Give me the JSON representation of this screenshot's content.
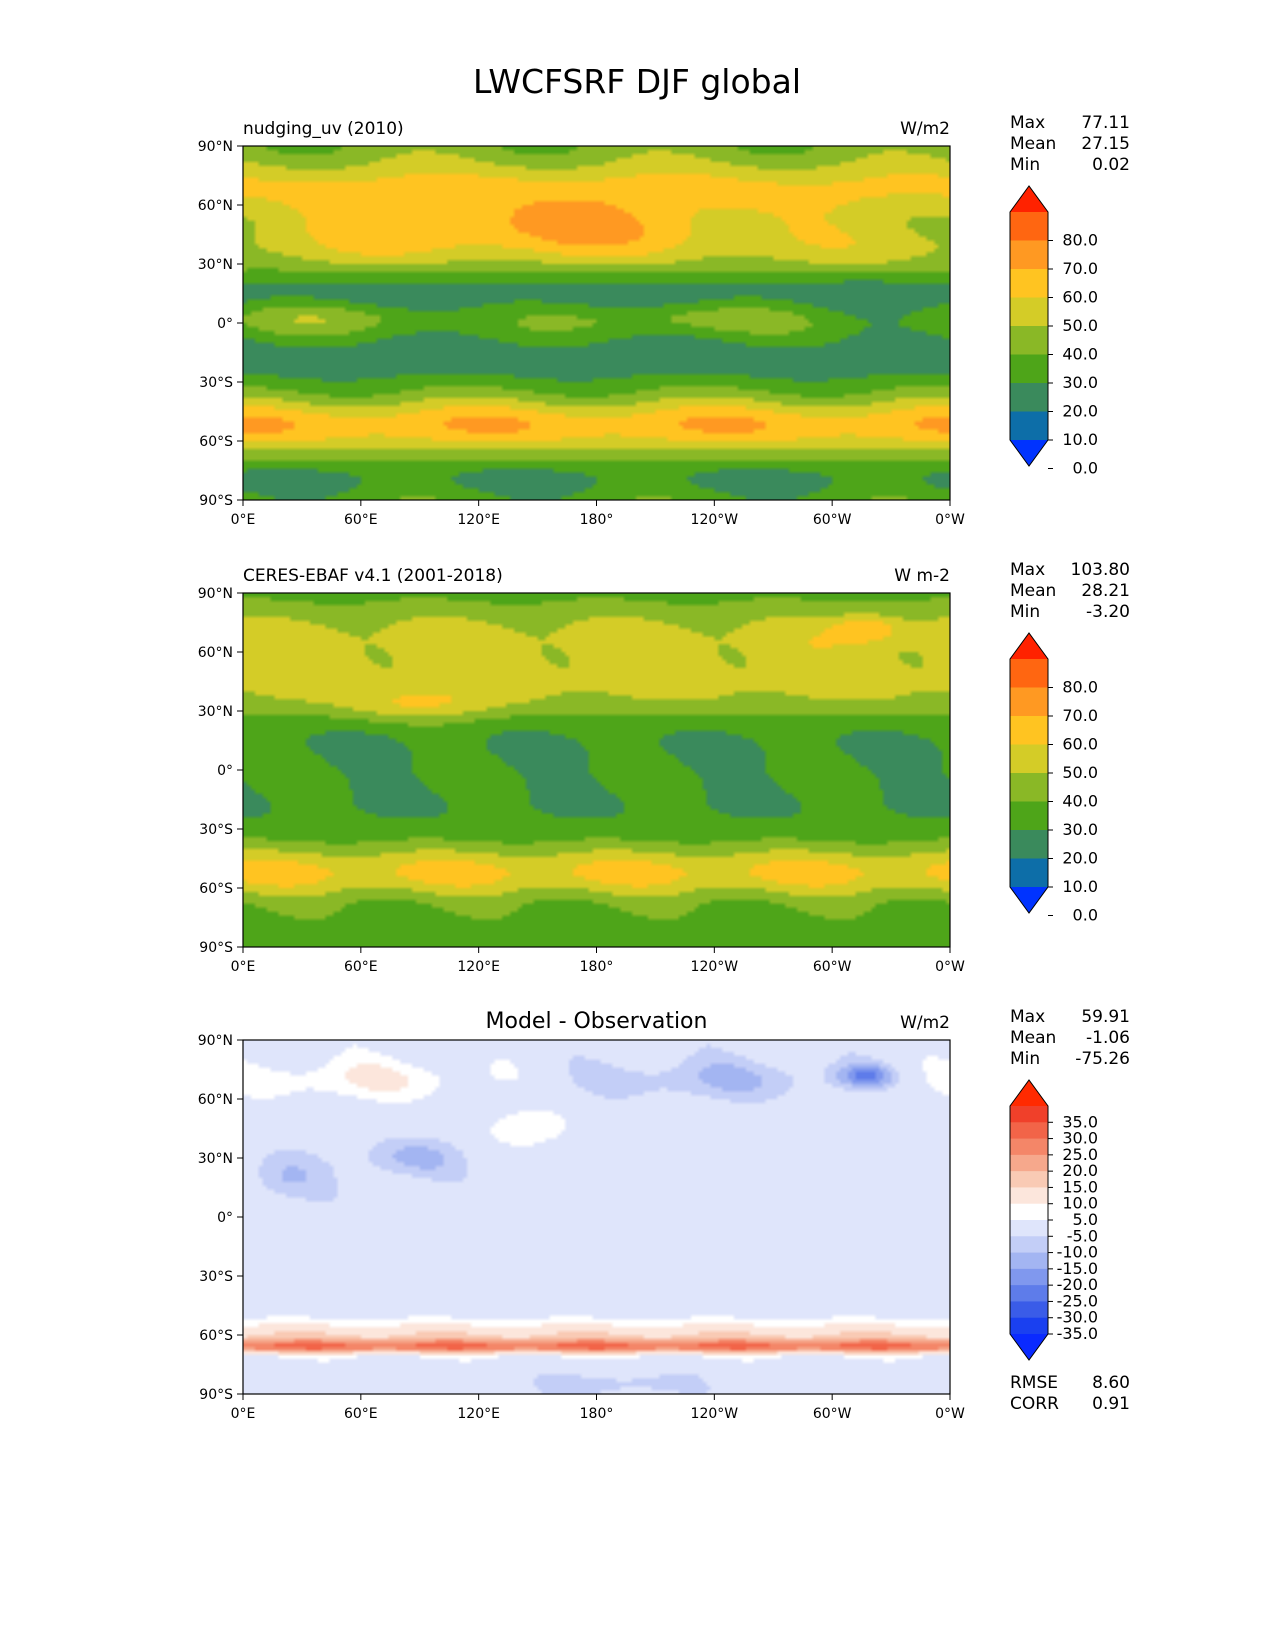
{
  "title": "LWCFSRF DJF global",
  "axes": {
    "lat_ticks": [
      "90°N",
      "60°N",
      "30°N",
      "0°",
      "30°S",
      "60°S",
      "90°S"
    ],
    "lon_ticks": [
      "0°E",
      "60°E",
      "120°E",
      "180°",
      "120°W",
      "60°W",
      "0°W"
    ]
  },
  "chart_data": [
    {
      "type": "heatmap",
      "panel_title_left": "nudging_uv (2010)",
      "panel_title_center": "",
      "units": "W/m2",
      "stats": [
        {
          "label": "Max",
          "value": "77.11"
        },
        {
          "label": "Mean",
          "value": "27.15"
        },
        {
          "label": "Min",
          "value": "0.02"
        }
      ],
      "extra_stats": [],
      "colorbar": {
        "labels": [
          "80.0",
          "70.0",
          "60.0",
          "50.0",
          "40.0",
          "30.0",
          "20.0",
          "10.0",
          "0.0"
        ],
        "colors": [
          "#ff2200",
          "#ff6611",
          "#ff9922",
          "#ffc421",
          "#d4cc27",
          "#8ab826",
          "#4ea519",
          "#3a8a5c",
          "#0d6ea8",
          "#0033ff"
        ],
        "extend": "both"
      },
      "x_range": [
        0,
        360
      ],
      "y_range": [
        -90,
        90
      ]
    },
    {
      "type": "heatmap",
      "panel_title_left": "CERES-EBAF v4.1 (2001-2018)",
      "panel_title_center": "",
      "units": "W m-2",
      "stats": [
        {
          "label": "Max",
          "value": "103.80"
        },
        {
          "label": "Mean",
          "value": "28.21"
        },
        {
          "label": "Min",
          "value": "-3.20"
        }
      ],
      "extra_stats": [],
      "colorbar": {
        "labels": [
          "80.0",
          "70.0",
          "60.0",
          "50.0",
          "40.0",
          "30.0",
          "20.0",
          "10.0",
          "0.0"
        ],
        "colors": [
          "#ff2200",
          "#ff6611",
          "#ff9922",
          "#ffc421",
          "#d4cc27",
          "#8ab826",
          "#4ea519",
          "#3a8a5c",
          "#0d6ea8",
          "#0033ff"
        ],
        "extend": "both"
      },
      "x_range": [
        0,
        360
      ],
      "y_range": [
        -90,
        90
      ]
    },
    {
      "type": "heatmap",
      "panel_title_left": "",
      "panel_title_center": "Model - Observation",
      "units": "W/m2",
      "stats": [
        {
          "label": "Max",
          "value": "59.91"
        },
        {
          "label": "Mean",
          "value": "-1.06"
        },
        {
          "label": "Min",
          "value": "-75.26"
        }
      ],
      "extra_stats": [
        {
          "label": "RMSE",
          "value": "8.60"
        },
        {
          "label": "CORR",
          "value": "0.91"
        }
      ],
      "colorbar": {
        "labels": [
          "35.0",
          "30.0",
          "25.0",
          "20.0",
          "15.0",
          "10.0",
          "5.0",
          "-5.0",
          "-10.0",
          "-15.0",
          "-20.0",
          "-25.0",
          "-30.0",
          "-35.0"
        ],
        "colors": [
          "#ff2a00",
          "#f0402a",
          "#f26448",
          "#f48668",
          "#f6a88c",
          "#f9cab4",
          "#fce6dc",
          "#ffffff",
          "#dfe5fb",
          "#c3cef7",
          "#a3b5f2",
          "#8098ee",
          "#5e7cea",
          "#3a5ce8",
          "#1a40f0",
          "#0a2aff"
        ],
        "extend": "both"
      },
      "x_range": [
        0,
        360
      ],
      "y_range": [
        -90,
        90
      ]
    }
  ]
}
